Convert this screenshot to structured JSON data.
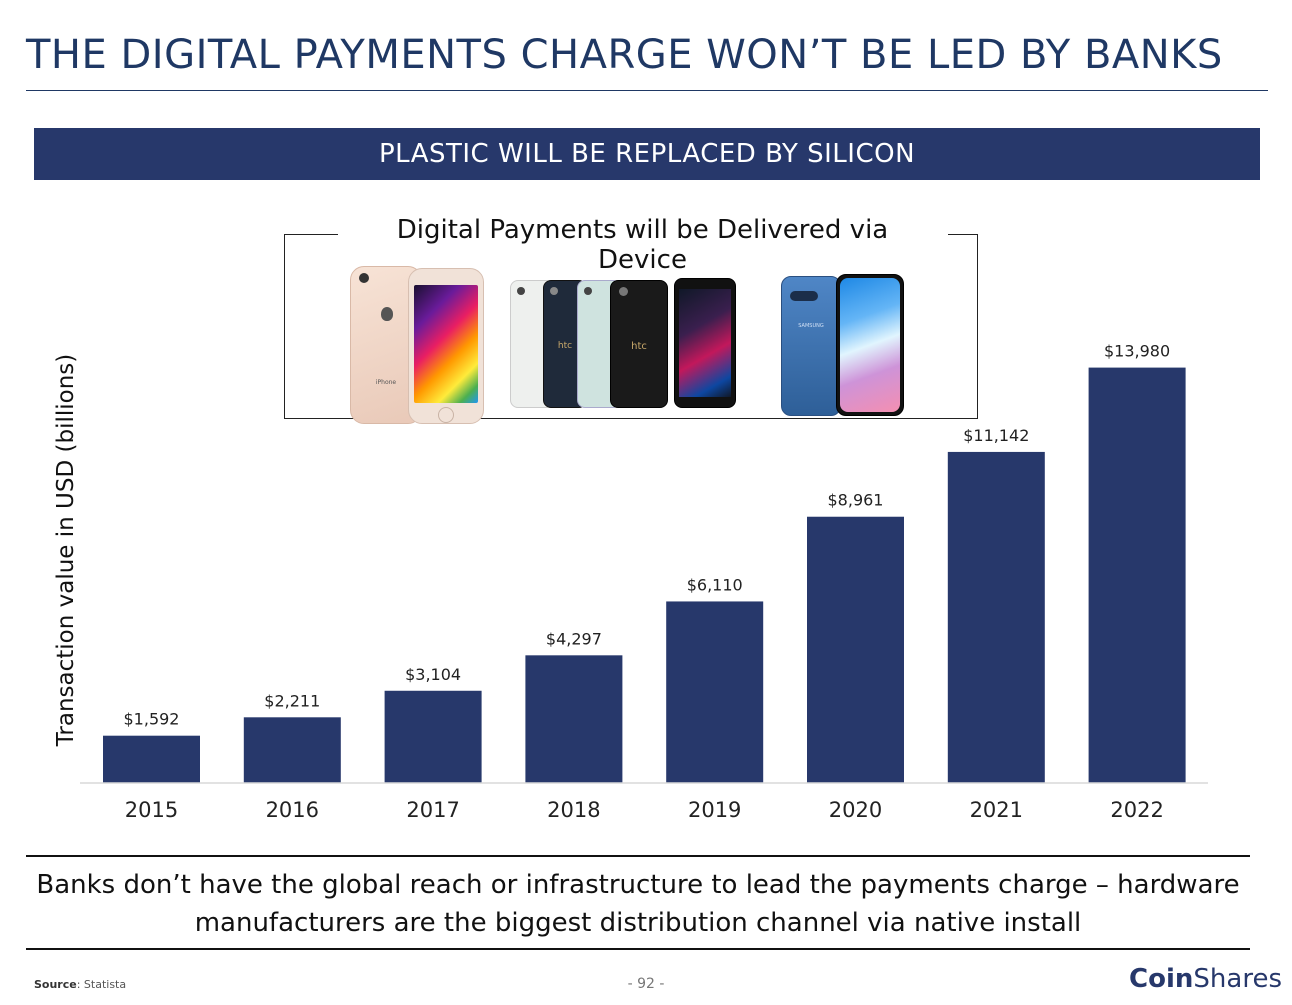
{
  "header": {
    "title": "THE DIGITAL PAYMENTS CHARGE WON’T BE LED BY BANKS",
    "banner": "PLASTIC WILL BE REPLACED BY SILICON"
  },
  "devices": {
    "title": "Digital Payments will be Delivered via Device",
    "iphone_label": "iPhone",
    "htc_label": "htc",
    "samsung_label": "SAMSUNG"
  },
  "chart_data": {
    "type": "bar",
    "categories": [
      "2015",
      "2016",
      "2017",
      "2018",
      "2019",
      "2020",
      "2021",
      "2022"
    ],
    "values": [
      1592,
      2211,
      3104,
      4297,
      6110,
      8961,
      11142,
      13980
    ],
    "value_labels": [
      "$1,592",
      "$2,211",
      "$3,104",
      "$4,297",
      "$6,110",
      "$8,961",
      "$11,142",
      "$13,980"
    ],
    "ylabel": "Transaction value in USD (billions)",
    "bar_color": "#27386b",
    "ylim": [
      0,
      14000
    ],
    "grid": false
  },
  "footer": {
    "message": "Banks don’t have the global reach or infrastructure to lead the payments charge – hardware manufacturers are the biggest distribution channel via native install",
    "source_label": "Source",
    "source_value": ": Statista",
    "page_number": "- 92 -",
    "logo_bold": "Coin",
    "logo_light": "Shares"
  }
}
